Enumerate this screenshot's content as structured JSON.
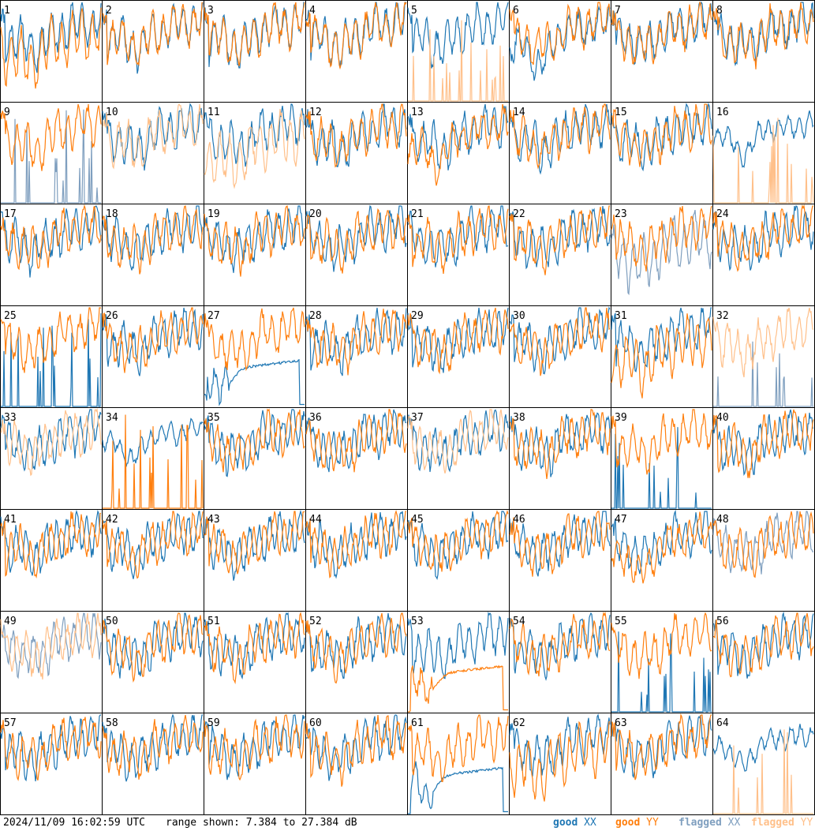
{
  "footer": {
    "timestamp": "2024/11/09 16:02:59 UTC",
    "range_text": "range shown: 7.384 to 27.384 dB"
  },
  "legend": [
    {
      "id": "good-xx",
      "word": "good",
      "pol": "XX",
      "color": "#1f77b4"
    },
    {
      "id": "good-yy",
      "word": "good",
      "pol": "YY",
      "color": "#ff7f0e"
    },
    {
      "id": "flagged-xx",
      "word": "flagged",
      "pol": "XX",
      "color": "#7f9fbf"
    },
    {
      "id": "flagged-yy",
      "word": "flagged",
      "pol": "YY",
      "color": "#ffc08a"
    }
  ],
  "chart_data": {
    "type": "line",
    "layout": "8x8 small multiples",
    "y_unit": "dB",
    "ylim": [
      7.384,
      27.384
    ],
    "series_styles": {
      "good_xx": "#1f77b4",
      "good_yy": "#ff7f0e",
      "flagged_xx": "#7f9fbf",
      "flagged_yy": "#ffc08a"
    },
    "panels": [
      {
        "id": "1",
        "xx": "good",
        "yy": "good",
        "xx_shape": "normal",
        "yy_shape": "low"
      },
      {
        "id": "2",
        "xx": "good",
        "yy": "good",
        "xx_shape": "normal",
        "yy_shape": "normal"
      },
      {
        "id": "3",
        "xx": "good",
        "yy": "good",
        "xx_shape": "normal",
        "yy_shape": "normal"
      },
      {
        "id": "4",
        "xx": "good",
        "yy": "good",
        "xx_shape": "normal",
        "yy_shape": "normal"
      },
      {
        "id": "5",
        "xx": "good",
        "yy": "flagged",
        "xx_shape": "normal",
        "yy_shape": "spikes"
      },
      {
        "id": "6",
        "xx": "good",
        "yy": "good",
        "xx_shape": "dip",
        "yy_shape": "normal"
      },
      {
        "id": "7",
        "xx": "good",
        "yy": "good",
        "xx_shape": "normal",
        "yy_shape": "normal"
      },
      {
        "id": "8",
        "xx": "good",
        "yy": "good",
        "xx_shape": "normal",
        "yy_shape": "normal"
      },
      {
        "id": "9",
        "xx": "flagged",
        "yy": "good",
        "xx_shape": "spikes",
        "yy_shape": "normal"
      },
      {
        "id": "10",
        "xx": "good",
        "yy": "flagged",
        "xx_shape": "normal",
        "yy_shape": "normal"
      },
      {
        "id": "11",
        "xx": "good",
        "yy": "flagged",
        "xx_shape": "normal",
        "yy_shape": "low"
      },
      {
        "id": "12",
        "xx": "good",
        "yy": "good",
        "xx_shape": "normal",
        "yy_shape": "normal"
      },
      {
        "id": "13",
        "xx": "good",
        "yy": "good",
        "xx_shape": "normal",
        "yy_shape": "dip"
      },
      {
        "id": "14",
        "xx": "good",
        "yy": "good",
        "xx_shape": "normal",
        "yy_shape": "normal"
      },
      {
        "id": "15",
        "xx": "good",
        "yy": "good",
        "xx_shape": "normal",
        "yy_shape": "normal"
      },
      {
        "id": "16",
        "xx": "good",
        "yy": "flagged",
        "xx_shape": "smooth",
        "yy_shape": "spikes"
      },
      {
        "id": "17",
        "xx": "good",
        "yy": "good",
        "xx_shape": "normal",
        "yy_shape": "normal"
      },
      {
        "id": "18",
        "xx": "good",
        "yy": "good",
        "xx_shape": "normal",
        "yy_shape": "normal"
      },
      {
        "id": "19",
        "xx": "good",
        "yy": "good",
        "xx_shape": "normal",
        "yy_shape": "normal"
      },
      {
        "id": "20",
        "xx": "good",
        "yy": "good",
        "xx_shape": "normal",
        "yy_shape": "normal"
      },
      {
        "id": "21",
        "xx": "good",
        "yy": "good",
        "xx_shape": "normal",
        "yy_shape": "normal"
      },
      {
        "id": "22",
        "xx": "good",
        "yy": "good",
        "xx_shape": "normal",
        "yy_shape": "normal"
      },
      {
        "id": "23",
        "xx": "flagged",
        "yy": "good",
        "xx_shape": "low",
        "yy_shape": "normal"
      },
      {
        "id": "24",
        "xx": "good",
        "yy": "good",
        "xx_shape": "normal",
        "yy_shape": "normal"
      },
      {
        "id": "25",
        "xx": "good",
        "yy": "good",
        "xx_shape": "spikes",
        "yy_shape": "normal"
      },
      {
        "id": "26",
        "xx": "good",
        "yy": "good",
        "xx_shape": "normal",
        "yy_shape": "normal"
      },
      {
        "id": "27",
        "xx": "good",
        "yy": "good",
        "xx_shape": "flat",
        "yy_shape": "normal"
      },
      {
        "id": "28",
        "xx": "good",
        "yy": "good",
        "xx_shape": "normal",
        "yy_shape": "normal"
      },
      {
        "id": "29",
        "xx": "good",
        "yy": "good",
        "xx_shape": "normal",
        "yy_shape": "normal"
      },
      {
        "id": "30",
        "xx": "good",
        "yy": "good",
        "xx_shape": "normal",
        "yy_shape": "normal"
      },
      {
        "id": "31",
        "xx": "good",
        "yy": "good",
        "xx_shape": "normal",
        "yy_shape": "low"
      },
      {
        "id": "32",
        "xx": "flagged",
        "yy": "flagged",
        "xx_shape": "spikes",
        "yy_shape": "normal"
      },
      {
        "id": "33",
        "xx": "good",
        "yy": "flagged",
        "xx_shape": "normal",
        "yy_shape": "normal"
      },
      {
        "id": "34",
        "xx": "good",
        "yy": "good",
        "xx_shape": "smooth",
        "yy_shape": "spikes"
      },
      {
        "id": "35",
        "xx": "good",
        "yy": "good",
        "xx_shape": "normal",
        "yy_shape": "normal"
      },
      {
        "id": "36",
        "xx": "good",
        "yy": "good",
        "xx_shape": "normal",
        "yy_shape": "normal"
      },
      {
        "id": "37",
        "xx": "good",
        "yy": "flagged",
        "xx_shape": "normal",
        "yy_shape": "normal"
      },
      {
        "id": "38",
        "xx": "good",
        "yy": "good",
        "xx_shape": "normal",
        "yy_shape": "normal"
      },
      {
        "id": "39",
        "xx": "good",
        "yy": "good",
        "xx_shape": "spikes",
        "yy_shape": "normal"
      },
      {
        "id": "40",
        "xx": "good",
        "yy": "good",
        "xx_shape": "normal",
        "yy_shape": "normal"
      },
      {
        "id": "41",
        "xx": "good",
        "yy": "good",
        "xx_shape": "normal",
        "yy_shape": "normal"
      },
      {
        "id": "42",
        "xx": "good",
        "yy": "good",
        "xx_shape": "normal",
        "yy_shape": "normal"
      },
      {
        "id": "43",
        "xx": "good",
        "yy": "good",
        "xx_shape": "normal",
        "yy_shape": "normal"
      },
      {
        "id": "44",
        "xx": "good",
        "yy": "good",
        "xx_shape": "normal",
        "yy_shape": "normal"
      },
      {
        "id": "45",
        "xx": "good",
        "yy": "good",
        "xx_shape": "normal",
        "yy_shape": "normal"
      },
      {
        "id": "46",
        "xx": "good",
        "yy": "good",
        "xx_shape": "normal",
        "yy_shape": "normal"
      },
      {
        "id": "47",
        "xx": "good",
        "yy": "good",
        "xx_shape": "normal",
        "yy_shape": "dip"
      },
      {
        "id": "48",
        "xx": "flagged",
        "yy": "good",
        "xx_shape": "normal",
        "yy_shape": "normal"
      },
      {
        "id": "49",
        "xx": "flagged",
        "yy": "flagged",
        "xx_shape": "normal",
        "yy_shape": "normal"
      },
      {
        "id": "50",
        "xx": "good",
        "yy": "good",
        "xx_shape": "normal",
        "yy_shape": "normal"
      },
      {
        "id": "51",
        "xx": "good",
        "yy": "good",
        "xx_shape": "normal",
        "yy_shape": "normal"
      },
      {
        "id": "52",
        "xx": "good",
        "yy": "good",
        "xx_shape": "normal",
        "yy_shape": "normal"
      },
      {
        "id": "53",
        "xx": "good",
        "yy": "good",
        "xx_shape": "normal",
        "yy_shape": "flat"
      },
      {
        "id": "54",
        "xx": "good",
        "yy": "good",
        "xx_shape": "normal",
        "yy_shape": "normal"
      },
      {
        "id": "55",
        "xx": "good",
        "yy": "good",
        "xx_shape": "spikes",
        "yy_shape": "normal"
      },
      {
        "id": "56",
        "xx": "good",
        "yy": "good",
        "xx_shape": "normal",
        "yy_shape": "normal"
      },
      {
        "id": "57",
        "xx": "good",
        "yy": "good",
        "xx_shape": "normal",
        "yy_shape": "normal"
      },
      {
        "id": "58",
        "xx": "good",
        "yy": "good",
        "xx_shape": "normal",
        "yy_shape": "normal"
      },
      {
        "id": "59",
        "xx": "good",
        "yy": "good",
        "xx_shape": "normal",
        "yy_shape": "normal"
      },
      {
        "id": "60",
        "xx": "good",
        "yy": "good",
        "xx_shape": "normal",
        "yy_shape": "normal"
      },
      {
        "id": "61",
        "xx": "good",
        "yy": "good",
        "xx_shape": "flat",
        "yy_shape": "normal"
      },
      {
        "id": "62",
        "xx": "good",
        "yy": "good",
        "xx_shape": "normal",
        "yy_shape": "low"
      },
      {
        "id": "63",
        "xx": "good",
        "yy": "good",
        "xx_shape": "normal",
        "yy_shape": "normal"
      },
      {
        "id": "64",
        "xx": "good",
        "yy": "flagged",
        "xx_shape": "smooth",
        "yy_shape": "spikes"
      }
    ]
  }
}
